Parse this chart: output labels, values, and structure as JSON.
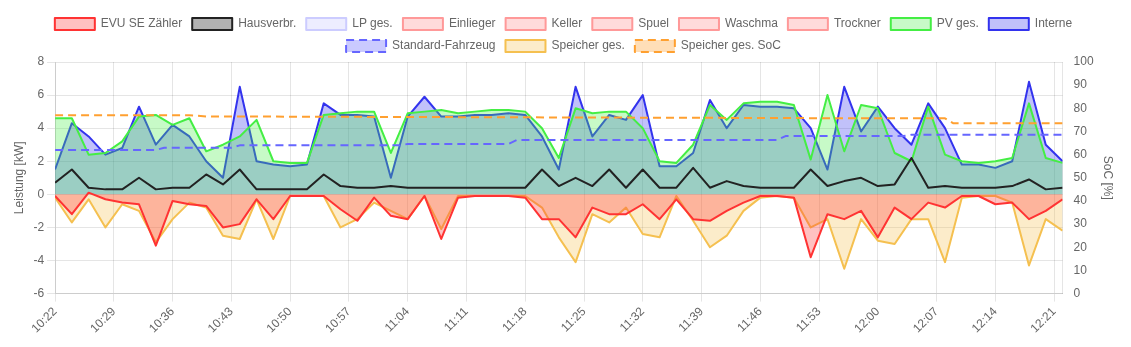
{
  "chart_data": {
    "type": "line",
    "ylabel": "Leistung [kW]",
    "y2label": "SoC [%]",
    "x": [
      10.3667,
      10.4,
      10.4333,
      10.4667,
      10.5,
      10.5333,
      10.5667,
      10.6,
      10.6333,
      10.6667,
      10.7,
      10.7333,
      10.7667,
      10.8,
      10.8333,
      10.8667,
      10.9,
      10.9333,
      10.9667,
      11.0,
      11.0333,
      11.0667,
      11.1,
      11.1333,
      11.1667,
      11.2,
      11.2333,
      11.2667,
      11.3,
      11.3333,
      11.3667,
      11.4,
      11.4333,
      11.4667,
      11.5,
      11.5333,
      11.5667,
      11.6,
      11.6333,
      11.6667,
      11.7,
      11.7333,
      11.7667,
      11.8,
      11.8333,
      11.8667,
      11.9,
      11.9333,
      11.9667,
      12.0,
      12.0333,
      12.0667,
      12.1,
      12.1333,
      12.1667,
      12.2,
      12.2333,
      12.2667,
      12.3,
      12.3333,
      12.3667
    ],
    "series": [
      {
        "name": "EVU SE Zähler",
        "type": "area",
        "color": "#ff3333",
        "values": [
          -0.1,
          -1.2,
          0.1,
          -0.3,
          -0.5,
          -0.6,
          -3.1,
          -0.4,
          -0.6,
          -0.7,
          -2.0,
          -1.8,
          -0.3,
          -1.5,
          -0.1,
          -0.1,
          -0.1,
          -0.9,
          -1.6,
          -0.2,
          -1.3,
          -1.5,
          -0.1,
          -2.7,
          -0.2,
          -0.1,
          -0.1,
          -0.1,
          -0.2,
          -1.5,
          -1.5,
          -2.6,
          -0.8,
          -1.2,
          -1.2,
          -0.6,
          -1.5,
          -0.3,
          -1.5,
          -1.6,
          -1.0,
          -0.5,
          -0.1,
          -0.1,
          -0.2,
          -3.8,
          -1.2,
          -1.5,
          -1.0,
          -2.6,
          -0.8,
          -1.5,
          -0.5,
          -0.8,
          -0.1,
          -0.1,
          -0.6,
          -0.5,
          -1.5,
          -1.0,
          -0.3
        ]
      },
      {
        "name": "Hausverbr.",
        "type": "line",
        "color": "#222222",
        "values": [
          0.7,
          1.5,
          0.4,
          0.3,
          0.3,
          1.0,
          0.3,
          0.4,
          0.4,
          1.2,
          0.6,
          1.5,
          0.3,
          0.3,
          0.3,
          0.3,
          1.2,
          0.5,
          0.4,
          0.4,
          0.5,
          0.4,
          0.4,
          0.4,
          0.4,
          0.4,
          0.4,
          0.4,
          0.4,
          1.5,
          0.5,
          1.0,
          0.5,
          1.5,
          0.4,
          1.5,
          0.4,
          0.4,
          1.6,
          0.4,
          0.8,
          0.5,
          0.4,
          0.4,
          0.4,
          1.5,
          0.5,
          0.8,
          1.0,
          0.5,
          0.6,
          2.2,
          0.4,
          0.5,
          0.4,
          0.4,
          0.4,
          0.5,
          0.9,
          0.3,
          0.4
        ]
      },
      {
        "name": "LP ges.",
        "type": "line",
        "color": "#ccccff",
        "values": [
          null,
          null,
          null,
          null,
          null,
          null,
          null,
          null,
          null,
          null,
          null,
          null,
          null,
          null,
          null,
          null,
          null,
          null,
          null,
          null,
          null,
          null,
          null,
          null,
          null,
          null,
          null,
          null,
          null,
          null,
          null,
          null,
          null,
          null,
          null,
          null,
          null,
          null,
          null,
          null,
          null,
          null,
          null,
          null,
          null,
          null,
          null,
          null,
          null,
          null,
          null,
          null,
          null,
          null,
          null,
          null,
          null,
          null,
          null,
          null,
          null
        ]
      },
      {
        "name": "Einlieger",
        "type": "line",
        "color": "#ff9999",
        "values": [
          null,
          null,
          null,
          null,
          null,
          null,
          null,
          null,
          null,
          null,
          null,
          null,
          null,
          null,
          null,
          null,
          null,
          null,
          null,
          null,
          null,
          null,
          null,
          null,
          null,
          null,
          null,
          null,
          null,
          null,
          null,
          null,
          null,
          null,
          null,
          null,
          null,
          null,
          null,
          null,
          null,
          null,
          null,
          null,
          null,
          null,
          null,
          null,
          null,
          null,
          null,
          null,
          null,
          null,
          null,
          null,
          null,
          null,
          null,
          null,
          null
        ]
      },
      {
        "name": "Keller",
        "type": "line",
        "color": "#ff9999",
        "values": [
          null,
          null,
          null,
          null,
          null,
          null,
          null,
          null,
          null,
          null,
          null,
          null,
          null,
          null,
          null,
          null,
          null,
          null,
          null,
          null,
          null,
          null,
          null,
          null,
          null,
          null,
          null,
          null,
          null,
          null,
          null,
          null,
          null,
          null,
          null,
          null,
          null,
          null,
          null,
          null,
          null,
          null,
          null,
          null,
          null,
          null,
          null,
          null,
          null,
          null,
          null,
          null,
          null,
          null,
          null,
          null,
          null,
          null,
          null,
          null,
          null
        ]
      },
      {
        "name": "Spuel",
        "type": "line",
        "color": "#ff9999",
        "values": [
          null,
          null,
          null,
          null,
          null,
          null,
          null,
          null,
          null,
          null,
          null,
          null,
          null,
          null,
          null,
          null,
          null,
          null,
          null,
          null,
          null,
          null,
          null,
          null,
          null,
          null,
          null,
          null,
          null,
          null,
          null,
          null,
          null,
          null,
          null,
          null,
          null,
          null,
          null,
          null,
          null,
          null,
          null,
          null,
          null,
          null,
          null,
          null,
          null,
          null,
          null,
          null,
          null,
          null,
          null,
          null,
          null,
          null,
          null,
          null,
          null
        ]
      },
      {
        "name": "Waschma",
        "type": "line",
        "color": "#ff9999",
        "values": [
          null,
          null,
          null,
          null,
          null,
          null,
          null,
          null,
          null,
          null,
          null,
          null,
          null,
          null,
          null,
          null,
          null,
          null,
          null,
          null,
          null,
          null,
          null,
          null,
          null,
          null,
          null,
          null,
          null,
          null,
          null,
          null,
          null,
          null,
          null,
          null,
          null,
          null,
          null,
          null,
          null,
          null,
          null,
          null,
          null,
          null,
          null,
          null,
          null,
          null,
          null,
          null,
          null,
          null,
          null,
          null,
          null,
          null,
          null,
          null,
          null
        ]
      },
      {
        "name": "Trockner",
        "type": "line",
        "color": "#ff9999",
        "values": [
          null,
          null,
          null,
          null,
          null,
          null,
          null,
          null,
          null,
          null,
          null,
          null,
          null,
          null,
          null,
          null,
          null,
          null,
          null,
          null,
          null,
          null,
          null,
          null,
          null,
          null,
          null,
          null,
          null,
          null,
          null,
          null,
          null,
          null,
          null,
          null,
          null,
          null,
          null,
          null,
          null,
          null,
          null,
          null,
          null,
          null,
          null,
          null,
          null,
          null,
          null,
          null,
          null,
          null,
          null,
          null,
          null,
          null,
          null,
          null,
          null
        ]
      },
      {
        "name": "PV ges.",
        "type": "area",
        "color": "#44ee44",
        "values": [
          4.6,
          4.6,
          2.4,
          2.5,
          3.2,
          4.7,
          4.8,
          4.2,
          4.6,
          2.6,
          3.0,
          3.5,
          4.5,
          2.0,
          1.9,
          1.9,
          4.8,
          4.9,
          5.0,
          5.0,
          2.5,
          4.9,
          5.0,
          5.1,
          4.9,
          5.0,
          5.1,
          5.1,
          5.0,
          4.0,
          2.2,
          5.2,
          4.9,
          5.0,
          5.0,
          4.0,
          2.0,
          1.9,
          3.0,
          5.4,
          4.5,
          5.5,
          5.6,
          5.6,
          5.4,
          2.1,
          6.0,
          2.6,
          5.4,
          5.2,
          2.5,
          2.0,
          5.3,
          2.4,
          2.0,
          1.9,
          2.0,
          2.2,
          5.5,
          2.2,
          1.9
        ]
      },
      {
        "name": "Interne",
        "type": "area",
        "color": "#3333ee",
        "values": [
          1.5,
          4.3,
          3.5,
          2.4,
          2.8,
          5.3,
          3.0,
          4.2,
          3.5,
          2.0,
          1.0,
          6.5,
          2.0,
          1.8,
          1.7,
          1.8,
          5.5,
          4.8,
          4.8,
          4.7,
          1.0,
          4.7,
          5.9,
          4.7,
          4.7,
          4.8,
          4.8,
          4.9,
          4.8,
          3.5,
          1.5,
          6.5,
          3.5,
          4.8,
          4.5,
          6.0,
          1.7,
          1.7,
          2.5,
          5.7,
          4.0,
          5.4,
          5.3,
          5.3,
          5.2,
          4.0,
          1.5,
          6.5,
          3.8,
          5.3,
          4.0,
          3.0,
          5.5,
          4.0,
          1.8,
          1.8,
          1.6,
          2.0,
          6.8,
          3.0,
          2.0
        ]
      },
      {
        "name": "Standard-Fahrzeug",
        "type": "line",
        "axis": "y2",
        "line_style": "dashed",
        "color": "#6666ff",
        "x": [
          10.3667,
          10.5667,
          10.5833,
          10.7167,
          10.7333,
          11.05,
          11.0667,
          11.2667,
          11.2833,
          11.8,
          11.8167,
          12.05,
          12.0667,
          12.3667
        ],
        "values": [
          62,
          62,
          63,
          63,
          64,
          64,
          64.6,
          64.6,
          66.3,
          66.3,
          68,
          68,
          68.6,
          68.6
        ]
      },
      {
        "name": "Speicher ges.",
        "type": "area",
        "color": "#f5c050",
        "values": [
          -0.2,
          -1.7,
          -0.3,
          -2.0,
          -0.6,
          -1.0,
          -2.9,
          -1.5,
          -0.5,
          -0.8,
          -2.5,
          -2.7,
          -0.3,
          -2.7,
          -0.1,
          -0.1,
          -0.1,
          -2.0,
          -1.5,
          -0.5,
          -1.0,
          -1.5,
          -0.1,
          -2.1,
          -0.1,
          -0.1,
          -0.1,
          -0.1,
          -0.1,
          -0.8,
          -2.6,
          -4.1,
          -1.2,
          -1.7,
          -0.8,
          -2.4,
          -2.6,
          -0.1,
          -1.6,
          -3.2,
          -2.5,
          -1.0,
          -0.2,
          -0.1,
          -0.2,
          -2.0,
          -1.5,
          -4.5,
          -1.5,
          -2.8,
          -3.0,
          -1.5,
          -1.5,
          -4.1,
          -0.2,
          -0.1,
          -0.1,
          -0.5,
          -4.3,
          -1.5,
          -2.2
        ]
      },
      {
        "name": "Speicher ges. SoC",
        "type": "line",
        "axis": "y2",
        "line_style": "dashed",
        "color": "#ffa030",
        "x": [
          10.3667,
          10.6333,
          10.6667,
          11.9667,
          12.1333,
          12.15,
          12.3667
        ],
        "values": [
          77,
          77,
          76.5,
          75.7,
          75.7,
          73.5,
          73.5
        ]
      }
    ],
    "xlim": [
      10.3667,
      12.3667
    ],
    "xticks": [
      {
        "value": 10.3667,
        "label": "10:22"
      },
      {
        "value": 10.4833,
        "label": "10:29"
      },
      {
        "value": 10.6,
        "label": "10:36"
      },
      {
        "value": 10.7167,
        "label": "10:43"
      },
      {
        "value": 10.8333,
        "label": "10:50"
      },
      {
        "value": 10.95,
        "label": "10:57"
      },
      {
        "value": 11.0667,
        "label": "11:04"
      },
      {
        "value": 11.1833,
        "label": "11:11"
      },
      {
        "value": 11.3,
        "label": "11:18"
      },
      {
        "value": 11.4167,
        "label": "11:25"
      },
      {
        "value": 11.5333,
        "label": "11:32"
      },
      {
        "value": 11.65,
        "label": "11:39"
      },
      {
        "value": 11.7667,
        "label": "11:46"
      },
      {
        "value": 11.8833,
        "label": "11:53"
      },
      {
        "value": 12.0,
        "label": "12:00"
      },
      {
        "value": 12.1167,
        "label": "12:07"
      },
      {
        "value": 12.2333,
        "label": "12:14"
      },
      {
        "value": 12.35,
        "label": "12:21"
      }
    ],
    "ylim": [
      -6,
      8
    ],
    "yticks": [
      -6,
      -4,
      -2,
      0,
      2,
      4,
      6,
      8
    ],
    "y2lim": [
      0,
      100
    ],
    "y2ticks": [
      0,
      10,
      20,
      30,
      40,
      50,
      60,
      70,
      80,
      90,
      100
    ],
    "grid": true,
    "legend": "top",
    "marker": "none",
    "line_style": "solid"
  }
}
